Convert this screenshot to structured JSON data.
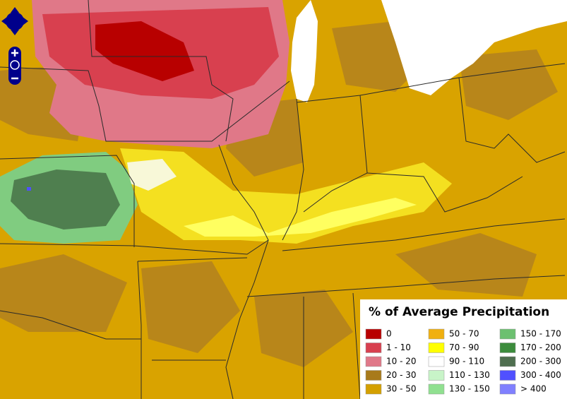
{
  "legend": {
    "title": "% of Average Precipitation",
    "items": [
      {
        "label": "0",
        "color": "#b80000"
      },
      {
        "label": "1 - 10",
        "color": "#d8404f"
      },
      {
        "label": "10 - 20",
        "color": "#e07888"
      },
      {
        "label": "20 - 30",
        "color": "#a87a1a"
      },
      {
        "label": "30 - 50",
        "color": "#d4a000"
      },
      {
        "label": "50 - 70",
        "color": "#f0b010"
      },
      {
        "label": "70 - 90",
        "color": "#ffff00"
      },
      {
        "label": "90 - 110",
        "color": "#ffffff"
      },
      {
        "label": "110 - 130",
        "color": "#c8f4c8"
      },
      {
        "label": "130 - 150",
        "color": "#90e090"
      },
      {
        "label": "150 - 170",
        "color": "#6cc070"
      },
      {
        "label": "170 - 200",
        "color": "#3c8c3c"
      },
      {
        "label": "200 - 300",
        "color": "#4f6f4f"
      },
      {
        "label": "300 - 400",
        "color": "#5050ff"
      },
      {
        "label": "> 400",
        "color": "#8080ff"
      }
    ]
  }
}
